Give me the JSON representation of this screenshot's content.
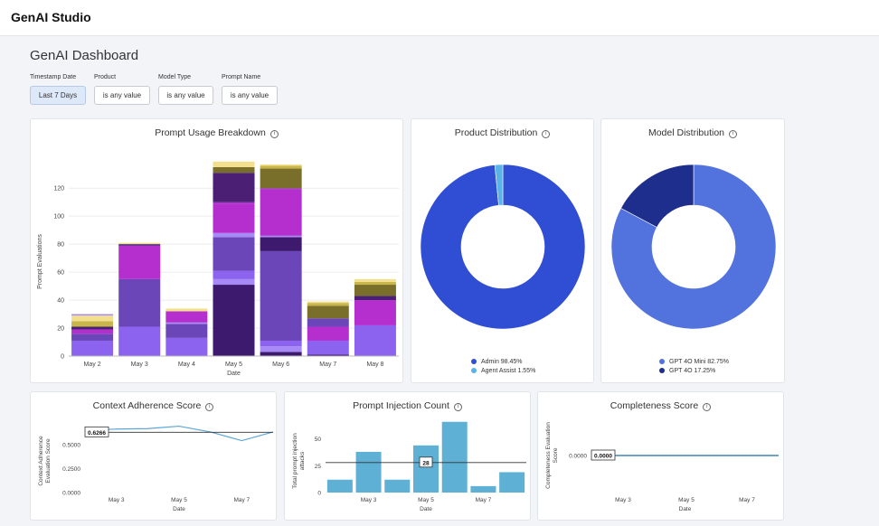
{
  "app": {
    "title": "GenAI Studio"
  },
  "page": {
    "title": "GenAI Dashboard"
  },
  "filters": [
    {
      "label": "Timestamp Date",
      "value": "Last 7 Days"
    },
    {
      "label": "Product",
      "value": "is any value"
    },
    {
      "label": "Model Type",
      "value": "is any value"
    },
    {
      "label": "Prompt Name",
      "value": "is any value"
    }
  ],
  "colors": {
    "accent": "#3a4fd6",
    "stack": [
      "#8b63ee",
      "#6b46b8",
      "#b52fcf",
      "#9f2ac0",
      "#3d1a6e",
      "#4a1f74",
      "#7a6f2a",
      "#c8b64a",
      "#f3e08e",
      "#a78af5"
    ]
  },
  "charts": {
    "usage": {
      "type": "bar",
      "title": "Prompt Usage Breakdown",
      "xlabel": "Date",
      "ylabel": "Prompt Evaluations",
      "ylim": [
        0,
        135
      ],
      "yticks": [
        0,
        20,
        40,
        60,
        80,
        100,
        120
      ],
      "categories": [
        "May 2",
        "May 3",
        "May 4",
        "May 5",
        "May 6",
        "May 7",
        "May 8"
      ],
      "stacks": [
        [
          [
            11,
            0
          ],
          [
            5,
            1
          ],
          [
            3,
            2
          ],
          [
            2,
            5
          ],
          [
            4,
            7
          ],
          [
            4,
            8
          ],
          [
            1,
            9
          ]
        ],
        [
          [
            21,
            0
          ],
          [
            34,
            1
          ],
          [
            24,
            2
          ],
          [
            1,
            4
          ],
          [
            1,
            8
          ]
        ],
        [
          [
            13,
            0
          ],
          [
            10,
            1
          ],
          [
            1,
            9
          ],
          [
            8,
            2
          ],
          [
            2,
            8
          ]
        ],
        [
          [
            51,
            4
          ],
          [
            4,
            9
          ],
          [
            6,
            0
          ],
          [
            24,
            1
          ],
          [
            3,
            9
          ],
          [
            21,
            2
          ],
          [
            1,
            3
          ],
          [
            21,
            5
          ],
          [
            4,
            6
          ],
          [
            4,
            8
          ]
        ],
        [
          [
            3,
            4
          ],
          [
            4,
            9
          ],
          [
            4,
            0
          ],
          [
            64,
            1
          ],
          [
            10,
            4
          ],
          [
            1,
            9
          ],
          [
            33,
            2
          ],
          [
            1,
            3
          ],
          [
            14,
            6
          ],
          [
            2,
            7
          ],
          [
            1,
            8
          ]
        ],
        [
          [
            1,
            4
          ],
          [
            10,
            0
          ],
          [
            10,
            2
          ],
          [
            6,
            1
          ],
          [
            9,
            6
          ],
          [
            2,
            7
          ],
          [
            1,
            8
          ]
        ],
        [
          [
            22,
            0
          ],
          [
            18,
            2
          ],
          [
            3,
            5
          ],
          [
            8,
            6
          ],
          [
            2,
            7
          ],
          [
            2,
            8
          ]
        ]
      ]
    },
    "product": {
      "type": "pie",
      "title": "Product Distribution",
      "slices": [
        {
          "label": "Admin",
          "value": 98.45,
          "text": "Admin 98.45%",
          "color": "#2f4ed3"
        },
        {
          "label": "Agent Assist",
          "value": 1.55,
          "text": "Agent Assist 1.55%",
          "color": "#5ab3e6"
        }
      ]
    },
    "model": {
      "type": "pie",
      "title": "Model Distribution",
      "slices": [
        {
          "label": "GPT 4O Mini",
          "value": 82.75,
          "text": "GPT 4O Mini 82.75%",
          "color": "#5272de"
        },
        {
          "label": "GPT 4O",
          "value": 17.25,
          "text": "GPT 4O 17.25%",
          "color": "#1e2e8c"
        }
      ]
    },
    "adherence": {
      "type": "line",
      "title": "Context Adherence Score",
      "xlabel": "Date",
      "ylabel": "Context Adherence Evaluation Score",
      "categories": [
        "May 3",
        "May 5",
        "May 7"
      ],
      "x": [
        2,
        3,
        4,
        5,
        6,
        7,
        8
      ],
      "values": [
        0.65,
        0.66,
        0.665,
        0.69,
        0.63,
        0.54,
        0.63
      ],
      "ylim": [
        0,
        0.78
      ],
      "yticks": [
        0,
        0.25,
        0.5
      ],
      "ytick_labels": [
        "0.0000",
        "0.2500",
        "0.5000"
      ],
      "reference": 0.6266,
      "reference_label": "0.6266"
    },
    "injection": {
      "type": "bar",
      "title": "Prompt Injection Count",
      "xlabel": "Date",
      "ylabel": "Total prompt injection attacks",
      "categories": [
        "May 3",
        "May 5",
        "May 7"
      ],
      "values": [
        12,
        38,
        12,
        44,
        66,
        6,
        19
      ],
      "ylim": [
        0,
        70
      ],
      "yticks": [
        0,
        25,
        50
      ],
      "reference": 28,
      "reference_label": "28"
    },
    "completeness": {
      "type": "line",
      "title": "Completeness Score",
      "xlabel": "Date",
      "ylabel": "Completeness Evaluation Score",
      "categories": [
        "May 3",
        "May 5",
        "May 7"
      ],
      "values": [
        0,
        0,
        0,
        0,
        0,
        0,
        0
      ],
      "ytick_labels": [
        "0.0000"
      ],
      "reference_label": "0.0000"
    }
  }
}
